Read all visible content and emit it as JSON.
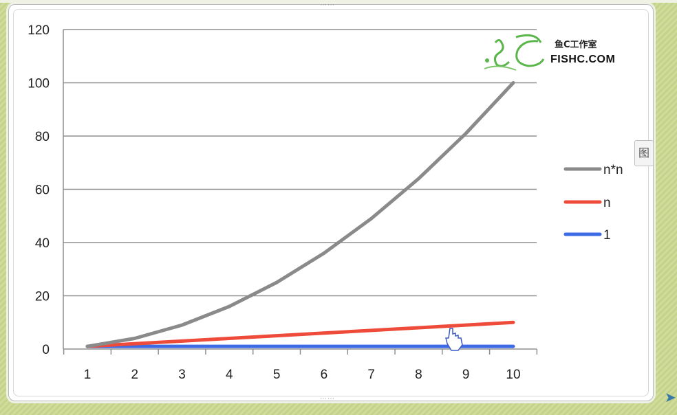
{
  "watermark": {
    "cn_text": "鱼C工作室",
    "en_text": "FISHC.COM"
  },
  "side_tab": {
    "glyph": "图"
  },
  "colors": {
    "n*n": "#8a8a8a",
    "n": "#ef4b3b",
    "1": "#3d6be6",
    "grid": "#8f8f8f"
  },
  "chart_data": {
    "type": "line",
    "title": "",
    "xlabel": "",
    "ylabel": "",
    "x": [
      1,
      2,
      3,
      4,
      5,
      6,
      7,
      8,
      9,
      10
    ],
    "ylim": [
      0,
      120
    ],
    "yticks": [
      0,
      20,
      40,
      60,
      80,
      100,
      120
    ],
    "grid": true,
    "legend": "right",
    "series": [
      {
        "name": "n*n",
        "values": [
          1,
          4,
          9,
          16,
          25,
          36,
          49,
          64,
          81,
          100
        ]
      },
      {
        "name": "n",
        "values": [
          1,
          2,
          3,
          4,
          5,
          6,
          7,
          8,
          9,
          10
        ]
      },
      {
        "name": "1",
        "values": [
          1,
          1,
          1,
          1,
          1,
          1,
          1,
          1,
          1,
          1
        ]
      }
    ]
  }
}
